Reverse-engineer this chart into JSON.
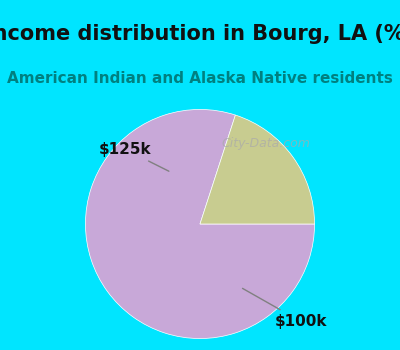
{
  "title": "Income distribution in Bourg, LA (%)",
  "subtitle": "American Indian and Alaska Native residents",
  "title_color": "#111111",
  "subtitle_color": "#008080",
  "title_bg_color": "#00E5FF",
  "chart_bg_color": "#e8f5e8",
  "slices": [
    {
      "label": "$100k",
      "value": 80,
      "color": "#C8A8D8"
    },
    {
      "label": "$125k",
      "value": 20,
      "color": "#C8CC90"
    }
  ],
  "watermark": "City-Data.com",
  "title_fontsize": 15,
  "subtitle_fontsize": 11,
  "label_fontsize": 11
}
